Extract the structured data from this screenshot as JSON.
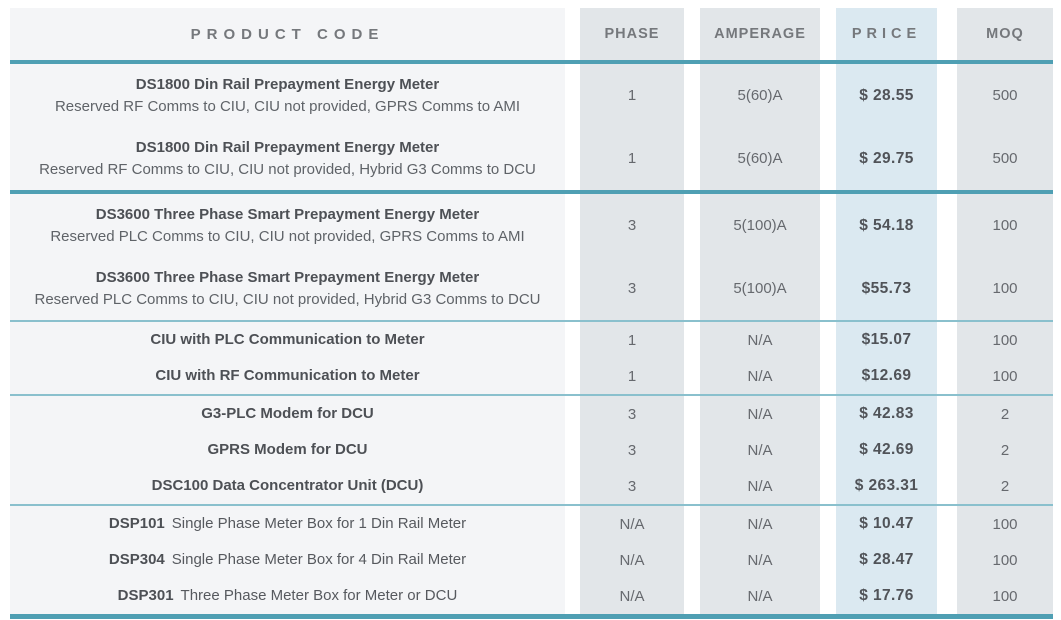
{
  "colors": {
    "accent_thick": "#4f9fb3",
    "accent_thin": "#8ac0cd",
    "product_col_bg": "#f4f5f7",
    "value_col_bg": "#e2e6e9",
    "price_col_bg": "#dbe9f1"
  },
  "table": {
    "columns": [
      {
        "label": "PRODUCT CODE"
      },
      {
        "label": "PHASE"
      },
      {
        "label": "AMPERAGE"
      },
      {
        "label": "PRICE"
      },
      {
        "label": "MOQ"
      }
    ],
    "rows": [
      {
        "title": "DS1800 Din Rail Prepayment Energy Meter",
        "title_rest": "",
        "subtitle": "Reserved RF Comms to CIU, CIU not provided, GPRS Comms to AMI",
        "phase": "1",
        "amperage": "5(60)A",
        "price": "$ 28.55",
        "moq": "500",
        "divider_after": "none"
      },
      {
        "title": "DS1800 Din Rail Prepayment Energy Meter",
        "title_rest": "",
        "subtitle": "Reserved RF Comms to CIU, CIU not provided, Hybrid G3 Comms to DCU",
        "phase": "1",
        "amperage": "5(60)A",
        "price": "$ 29.75",
        "moq": "500",
        "divider_after": "thick"
      },
      {
        "title": "DS3600 Three Phase Smart Prepayment Energy Meter",
        "title_rest": "",
        "subtitle": "Reserved PLC Comms to CIU, CIU not provided, GPRS Comms to AMI",
        "phase": "3",
        "amperage": "5(100)A",
        "price": "$ 54.18",
        "moq": "100",
        "divider_after": "none"
      },
      {
        "title": "DS3600 Three Phase Smart Prepayment Energy Meter",
        "title_rest": "",
        "subtitle": "Reserved PLC Comms to CIU, CIU not provided, Hybrid G3 Comms to DCU",
        "phase": "3",
        "amperage": "5(100)A",
        "price": "$55.73",
        "moq": "100",
        "divider_after": "thin"
      },
      {
        "title": "CIU with PLC Communication to Meter",
        "title_rest": "",
        "subtitle": "",
        "phase": "1",
        "amperage": "N/A",
        "price": "$15.07",
        "moq": "100",
        "divider_after": "none"
      },
      {
        "title": "CIU with RF Communication to Meter",
        "title_rest": "",
        "subtitle": "",
        "phase": "1",
        "amperage": "N/A",
        "price": "$12.69",
        "moq": "100",
        "divider_after": "thin"
      },
      {
        "title": "G3-PLC Modem for DCU",
        "title_rest": "",
        "subtitle": "",
        "phase": "3",
        "amperage": "N/A",
        "price": "$ 42.83",
        "moq": "2",
        "divider_after": "none"
      },
      {
        "title": "GPRS Modem for DCU",
        "title_rest": "",
        "subtitle": "",
        "phase": "3",
        "amperage": "N/A",
        "price": "$ 42.69",
        "moq": "2",
        "divider_after": "none"
      },
      {
        "title": "DSC100 Data Concentrator Unit (DCU)",
        "title_rest": "",
        "subtitle": "",
        "phase": "3",
        "amperage": "N/A",
        "price": "$ 263.31",
        "moq": "2",
        "divider_after": "thin"
      },
      {
        "title": "DSP101",
        "title_rest": "Single Phase Meter Box for 1 Din Rail Meter",
        "subtitle": "",
        "phase": "N/A",
        "amperage": "N/A",
        "price": "$ 10.47",
        "moq": "100",
        "divider_after": "none"
      },
      {
        "title": "DSP304",
        "title_rest": "Single Phase Meter Box for 4 Din Rail Meter",
        "subtitle": "",
        "phase": "N/A",
        "amperage": "N/A",
        "price": "$ 28.47",
        "moq": "100",
        "divider_after": "none"
      },
      {
        "title": "DSP301",
        "title_rest": "Three Phase Meter Box for Meter or DCU",
        "subtitle": "",
        "phase": "N/A",
        "amperage": "N/A",
        "price": "$ 17.76",
        "moq": "100",
        "divider_after": "bottom"
      }
    ]
  }
}
